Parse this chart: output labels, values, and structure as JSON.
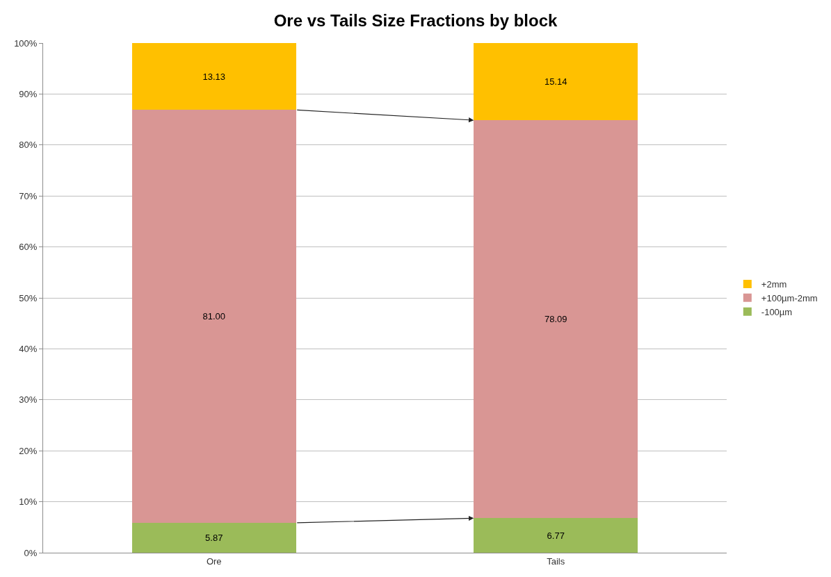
{
  "chart_data": {
    "type": "bar",
    "title": "Ore vs Tails Size Fractions by block",
    "categories": [
      "Ore",
      "Tails"
    ],
    "stacked": true,
    "series": [
      {
        "name": "-100µm",
        "color": "#9bbb59",
        "values": [
          5.87,
          6.77
        ],
        "value_labels": [
          "5.87",
          "6.77"
        ]
      },
      {
        "name": "+100µm-2mm",
        "color": "#d99694",
        "values": [
          81.0,
          78.09
        ],
        "value_labels": [
          "81.00",
          "78.09"
        ]
      },
      {
        "name": "+2mm",
        "color": "#ffc000",
        "values": [
          13.13,
          15.14
        ],
        "value_labels": [
          "13.13",
          "15.14"
        ]
      }
    ],
    "ylim": [
      0,
      100
    ],
    "yticks": [
      {
        "value": 0,
        "label": "0%"
      },
      {
        "value": 10,
        "label": "10%"
      },
      {
        "value": 20,
        "label": "20%"
      },
      {
        "value": 30,
        "label": "30%"
      },
      {
        "value": 40,
        "label": "40%"
      },
      {
        "value": 50,
        "label": "50%"
      },
      {
        "value": 60,
        "label": "60%"
      },
      {
        "value": 70,
        "label": "70%"
      },
      {
        "value": 80,
        "label": "80%"
      },
      {
        "value": 90,
        "label": "90%"
      },
      {
        "value": 100,
        "label": "100%"
      }
    ],
    "grid": "y",
    "legend": "right"
  }
}
